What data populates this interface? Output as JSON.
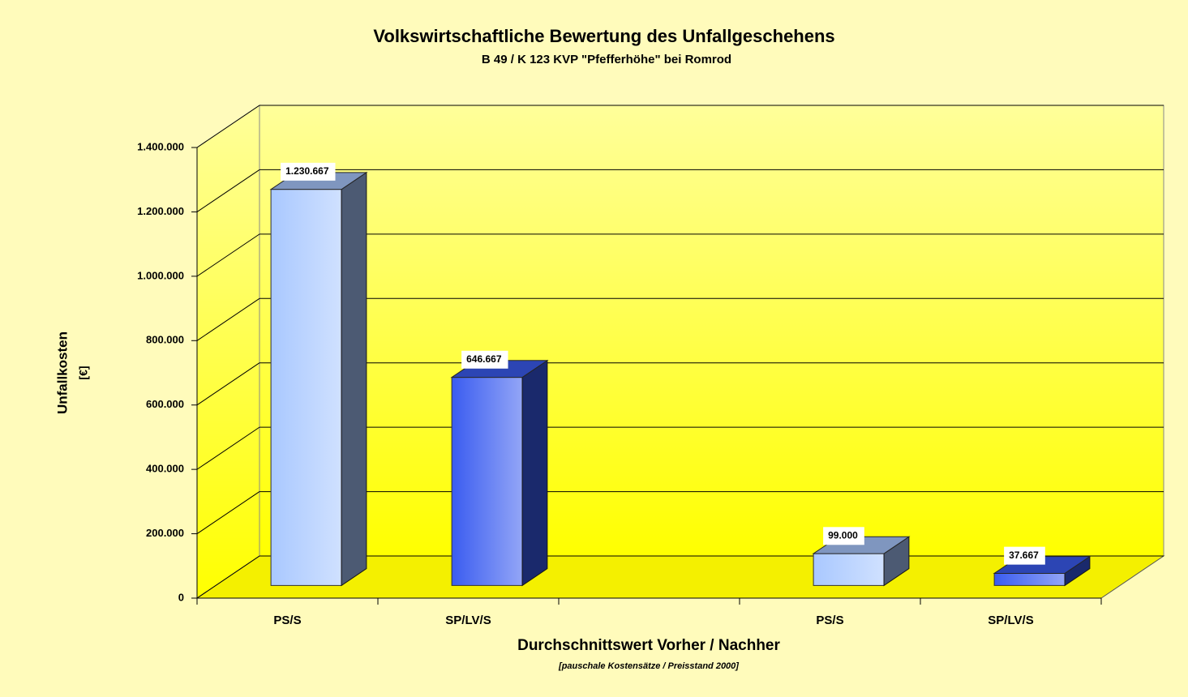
{
  "chart_data": {
    "type": "bar3d",
    "title": "Volkswirtschaftliche Bewertung des Unfallgeschehens",
    "subtitle": "B 49 / K 123 KVP \"Pfefferhöhe\" bei Romrod",
    "y_label": "Unfallkosten",
    "y_unit": "[€]",
    "x_label": "Durchschnittswert Vorher / Nachher",
    "note": "[pauschale Kostensätze / Preisstand 2000]",
    "categories": [
      "PS/S",
      "SP/LV/S",
      null,
      "PS/S",
      "SP/LV/S"
    ],
    "values": [
      1230667,
      646667,
      null,
      99000,
      37667
    ],
    "value_labels": [
      "1.230.667",
      "646.667",
      null,
      "99.000",
      "37.667"
    ],
    "colors": [
      "#a9c8ff",
      "#3a5cf0",
      null,
      "#a9c8ff",
      "#3a5cf0"
    ],
    "ylim": [
      0,
      1400000
    ],
    "yticks": [
      0,
      {
        "value": 200000,
        "label": "200.000"
      },
      {
        "value": 400000,
        "label": "400.000"
      },
      {
        "value": 600000,
        "label": "600.000"
      },
      {
        "value": 800000,
        "label": "800.000"
      },
      {
        "value": 1000000,
        "label": "1.000.000"
      },
      {
        "value": 1200000,
        "label": "1.200.000"
      },
      {
        "value": 1400000,
        "label": "1.400.000"
      }
    ],
    "grid": true
  }
}
